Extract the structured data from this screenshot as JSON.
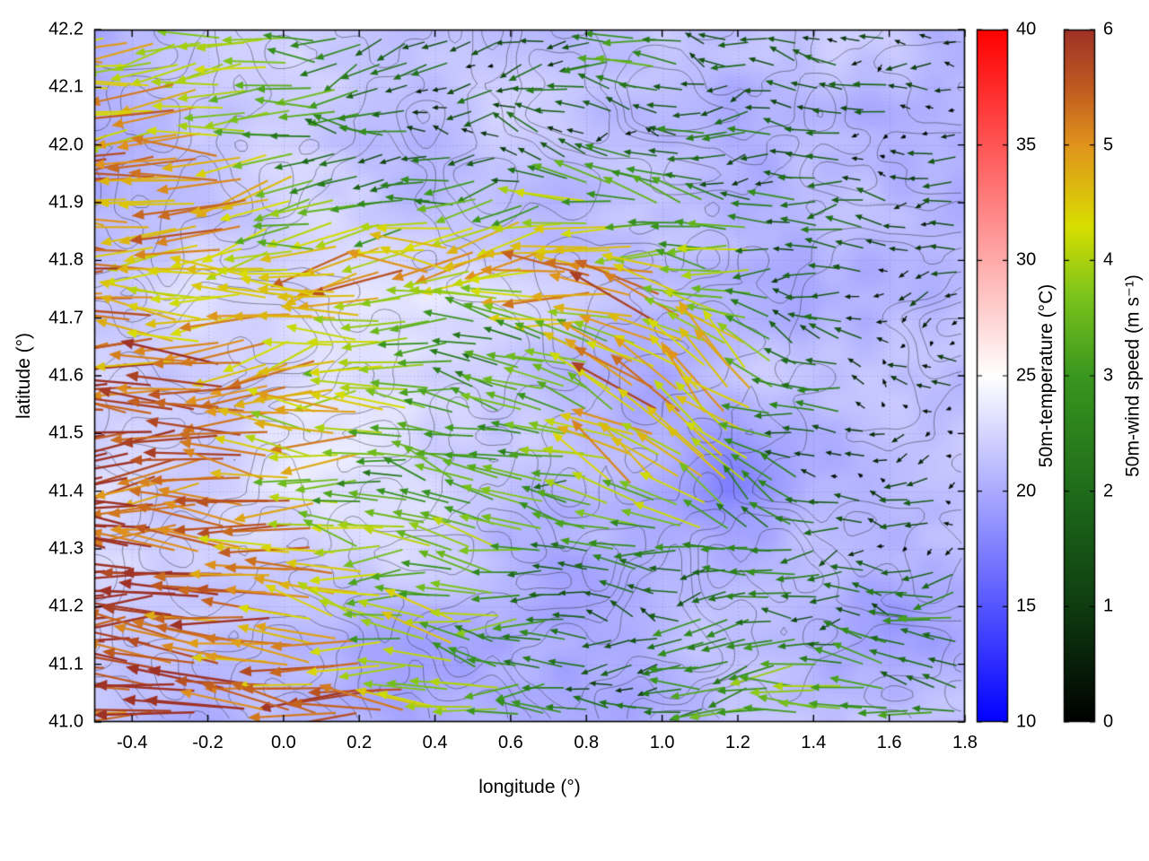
{
  "chart_data": {
    "type": "vector_field_map",
    "title": "",
    "xlabel": "longitude (°)",
    "ylabel": "latitude (°)",
    "xlim": [
      -0.5,
      1.8
    ],
    "ylim": [
      41.0,
      42.2
    ],
    "xticks": [
      -0.4,
      -0.2,
      0.0,
      0.2,
      0.4,
      0.6,
      0.8,
      1.0,
      1.2,
      1.4,
      1.6,
      1.8
    ],
    "yticks": [
      41.0,
      41.1,
      41.2,
      41.3,
      41.4,
      41.5,
      41.6,
      41.7,
      41.8,
      41.9,
      42.0,
      42.1,
      42.2
    ],
    "grid": true,
    "overlays": "gray terrain elevation contour lines over a 50m-temperature shaded map with colored 50m-wind vectors",
    "colorbars": [
      {
        "id": "temperature",
        "label": "50m-temperature (°C)",
        "min": 10,
        "max": 40,
        "ticks": [
          10,
          15,
          20,
          25,
          30,
          35,
          40
        ],
        "stops": [
          [
            10,
            "#0000ff"
          ],
          [
            25,
            "#ffffff"
          ],
          [
            40,
            "#ff0000"
          ]
        ]
      },
      {
        "id": "wind-speed",
        "label": "50m-wind speed (m s⁻¹)",
        "min": 0,
        "max": 6,
        "ticks": [
          0,
          1,
          2,
          3,
          4,
          5,
          6
        ],
        "stops": [
          [
            0,
            "#000000"
          ],
          [
            1,
            "#0e3c10"
          ],
          [
            2,
            "#1e6b1a"
          ],
          [
            3,
            "#39961e"
          ],
          [
            3.7,
            "#7cc41c"
          ],
          [
            4.3,
            "#d8de00"
          ],
          [
            5,
            "#e0941c"
          ],
          [
            5.5,
            "#c05a20"
          ],
          [
            6,
            "#9e3226"
          ]
        ]
      }
    ],
    "wind_grid": {
      "description": "Coarse 50m wind field read from the plotted vectors; rows north (42.2) to south (41.0), columns west (-0.5) to east (1.8). Strong westward flow (5-6 m s-1, dark red arrows) over the west/southwest, yellow-orange band (4-5) mid-map, weak scattered flow (0-1.5, dark green/black) in the northeast and east, moderate green westward flow (2-3) in the southeast.",
      "lats": [
        42.2,
        42.0,
        41.8,
        41.6,
        41.4,
        41.2,
        41.0
      ],
      "lons": [
        -0.5,
        -0.29,
        -0.08,
        0.13,
        0.34,
        0.55,
        0.75,
        0.96,
        1.17,
        1.38,
        1.59,
        1.8
      ],
      "speed_ms": [
        [
          4.5,
          4.2,
          3.8,
          3.0,
          1.6,
          1.3,
          1.6,
          2.2,
          2.0,
          1.5,
          1.2,
          1.0
        ],
        [
          5.0,
          4.8,
          4.2,
          2.6,
          1.5,
          1.2,
          1.3,
          1.8,
          1.5,
          1.2,
          0.8,
          0.7
        ],
        [
          5.5,
          5.0,
          4.6,
          4.5,
          4.6,
          4.5,
          5.0,
          4.5,
          3.5,
          1.5,
          0.8,
          0.6
        ],
        [
          6.0,
          5.8,
          5.0,
          4.5,
          3.0,
          2.3,
          3.0,
          5.5,
          5.0,
          2.5,
          0.8,
          0.6
        ],
        [
          6.0,
          6.0,
          5.5,
          4.0,
          3.0,
          3.5,
          3.0,
          4.5,
          3.5,
          1.8,
          0.8,
          0.7
        ],
        [
          6.0,
          5.5,
          5.5,
          5.0,
          4.0,
          3.0,
          2.5,
          2.0,
          2.2,
          2.2,
          2.0,
          2.0
        ],
        [
          5.5,
          5.0,
          6.0,
          5.5,
          4.5,
          3.5,
          2.0,
          2.5,
          3.0,
          3.0,
          2.8,
          2.8
        ]
      ],
      "direction_deg": [
        [
          185,
          185,
          190,
          195,
          200,
          190,
          180,
          170,
          180,
          185,
          180,
          175
        ],
        [
          185,
          185,
          190,
          185,
          180,
          175,
          180,
          175,
          180,
          180,
          185,
          180
        ],
        [
          180,
          182,
          185,
          188,
          185,
          182,
          180,
          178,
          175,
          180,
          185,
          180
        ],
        [
          178,
          180,
          182,
          180,
          178,
          175,
          170,
          150,
          135,
          160,
          180,
          185
        ],
        [
          180,
          180,
          178,
          175,
          172,
          170,
          165,
          140,
          130,
          170,
          185,
          190
        ],
        [
          182,
          180,
          178,
          175,
          172,
          175,
          178,
          180,
          185,
          185,
          182,
          180
        ],
        [
          180,
          178,
          175,
          172,
          170,
          175,
          180,
          182,
          185,
          182,
          180,
          178
        ]
      ]
    },
    "temperature_grid": {
      "description": "Coarse 50m temperature background read from the shading (mostly 18-24 °C, light blue to near-white); rows north (42.2) to south (41.0), columns west (-0.5) to east (1.8).",
      "values_c": [
        [
          21,
          21,
          22,
          22,
          21,
          21,
          21,
          21,
          21,
          21,
          21,
          21
        ],
        [
          21,
          22,
          22,
          21,
          21,
          22,
          21,
          21,
          21,
          22,
          21,
          21
        ],
        [
          22,
          22,
          22,
          23,
          22,
          22,
          21,
          21,
          22,
          21,
          21,
          22
        ],
        [
          22,
          23,
          23,
          23,
          24,
          23,
          22,
          21,
          20,
          21,
          22,
          22
        ],
        [
          22,
          22,
          23,
          23,
          23,
          22,
          21,
          19,
          18,
          21,
          21,
          21
        ],
        [
          21,
          22,
          22,
          22,
          21,
          21,
          20,
          20,
          21,
          21,
          20,
          21
        ],
        [
          21,
          21,
          21,
          20,
          19,
          20,
          20,
          21,
          21,
          21,
          21,
          21
        ]
      ]
    }
  }
}
